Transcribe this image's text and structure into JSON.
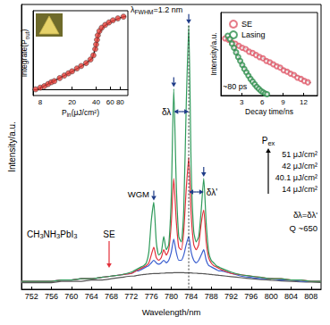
{
  "chart_data": [
    {
      "type": "line",
      "x_label": "Wavelength/nm",
      "y_label": "Intensity/a.u.",
      "xlim": [
        750,
        810
      ],
      "xticks": [
        752,
        756,
        760,
        764,
        768,
        772,
        776,
        780,
        784,
        788,
        792,
        796,
        800,
        804,
        808
      ],
      "ylim": [
        0,
        1.08
      ],
      "tick_labels": "x",
      "x": [
        750,
        752,
        754,
        756,
        758,
        760,
        762,
        764,
        766,
        768,
        770,
        772,
        772.5,
        773,
        773.5,
        774,
        774.5,
        775,
        775.5,
        776,
        776.5,
        777,
        777.5,
        778,
        778.5,
        779,
        779.5,
        780,
        780.5,
        781,
        781.5,
        782,
        782.5,
        783,
        783.5,
        784,
        784.5,
        785,
        785.5,
        786,
        786.5,
        787,
        787.5,
        788,
        788.5,
        789,
        789.5,
        790,
        792,
        794,
        796,
        798,
        800,
        802,
        804,
        806,
        808,
        810
      ],
      "series": [
        {
          "name": "51 μJ/cm²",
          "color": "#2e9a5a",
          "values": [
            0.03,
            0.03,
            0.03,
            0.03,
            0.035,
            0.035,
            0.04,
            0.04,
            0.045,
            0.05,
            0.055,
            0.065,
            0.07,
            0.075,
            0.08,
            0.085,
            0.09,
            0.1,
            0.14,
            0.26,
            0.33,
            0.18,
            0.13,
            0.14,
            0.2,
            0.15,
            0.17,
            0.35,
            0.76,
            0.4,
            0.2,
            0.18,
            0.3,
            0.7,
            1.0,
            0.45,
            0.22,
            0.18,
            0.2,
            0.3,
            0.42,
            0.25,
            0.14,
            0.11,
            0.1,
            0.09,
            0.085,
            0.08,
            0.065,
            0.055,
            0.05,
            0.045,
            0.04,
            0.04,
            0.035,
            0.035,
            0.03,
            0.03
          ]
        },
        {
          "name": "42 μJ/cm²",
          "color": "#e3303a",
          "values": [
            0.03,
            0.03,
            0.03,
            0.03,
            0.035,
            0.035,
            0.04,
            0.04,
            0.045,
            0.05,
            0.055,
            0.06,
            0.065,
            0.07,
            0.075,
            0.08,
            0.085,
            0.09,
            0.1,
            0.13,
            0.16,
            0.12,
            0.11,
            0.12,
            0.15,
            0.13,
            0.15,
            0.25,
            0.42,
            0.26,
            0.16,
            0.15,
            0.22,
            0.38,
            0.5,
            0.28,
            0.17,
            0.15,
            0.17,
            0.25,
            0.3,
            0.18,
            0.12,
            0.1,
            0.09,
            0.085,
            0.08,
            0.075,
            0.06,
            0.055,
            0.05,
            0.045,
            0.04,
            0.04,
            0.035,
            0.035,
            0.03,
            0.03
          ]
        },
        {
          "name": "40.1 μJ/cm²",
          "color": "#3b5fcf",
          "values": [
            0.03,
            0.03,
            0.03,
            0.03,
            0.035,
            0.035,
            0.04,
            0.04,
            0.045,
            0.05,
            0.055,
            0.06,
            0.065,
            0.07,
            0.07,
            0.075,
            0.08,
            0.085,
            0.09,
            0.1,
            0.11,
            0.1,
            0.095,
            0.1,
            0.11,
            0.1,
            0.11,
            0.14,
            0.19,
            0.14,
            0.11,
            0.11,
            0.13,
            0.17,
            0.2,
            0.14,
            0.11,
            0.1,
            0.11,
            0.13,
            0.15,
            0.11,
            0.09,
            0.085,
            0.08,
            0.075,
            0.07,
            0.07,
            0.06,
            0.05,
            0.045,
            0.04,
            0.04,
            0.035,
            0.035,
            0.03,
            0.03,
            0.03
          ]
        },
        {
          "name": "14 μJ/cm²",
          "color": "#555555",
          "values": [
            0.025,
            0.025,
            0.025,
            0.025,
            0.03,
            0.03,
            0.03,
            0.035,
            0.035,
            0.04,
            0.045,
            0.05,
            0.05,
            0.052,
            0.054,
            0.055,
            0.056,
            0.057,
            0.058,
            0.059,
            0.06,
            0.06,
            0.06,
            0.061,
            0.061,
            0.062,
            0.062,
            0.062,
            0.063,
            0.063,
            0.063,
            0.063,
            0.063,
            0.062,
            0.062,
            0.062,
            0.061,
            0.061,
            0.06,
            0.06,
            0.059,
            0.058,
            0.057,
            0.056,
            0.055,
            0.054,
            0.053,
            0.052,
            0.048,
            0.044,
            0.04,
            0.037,
            0.034,
            0.032,
            0.03,
            0.028,
            0.027,
            0.026
          ]
        }
      ],
      "annotations": [
        "SE",
        "WGM",
        [
          {
            "t": "CH"
          },
          {
            "t": "3",
            "sub": true
          },
          {
            "t": "NH"
          },
          {
            "t": "3",
            "sub": true
          },
          {
            "t": "PbI"
          },
          {
            "t": "3",
            "sub": true
          }
        ],
        "δλ",
        "δλ'",
        [
          {
            "t": "λ"
          },
          {
            "t": "FWHM",
            "sub": true
          },
          {
            "t": "=1.2 nm"
          }
        ],
        [
          {
            "t": "P"
          },
          {
            "t": "ex",
            "sub": true
          }
        ],
        "δλ=δλ'",
        "Q ~650"
      ]
    },
    {
      "type": "scatter",
      "log": true,
      "x_label": [
        {
          "t": "P"
        },
        {
          "t": "in",
          "sub": true
        },
        {
          "t": "(μJ/cm²)"
        }
      ],
      "y_label": [
        {
          "t": "Integrate(P"
        },
        {
          "t": "out",
          "sub": true
        },
        {
          "t": ")"
        }
      ],
      "xlim": [
        6.5,
        100
      ],
      "xticks": [
        8,
        20,
        40,
        60,
        80
      ],
      "ylim": [
        0.7,
        90
      ],
      "tick_labels": "x",
      "series": [
        {
          "type": "scatter",
          "color": "#e8403a",
          "marker": "circle",
          "x": [
            7,
            8,
            9,
            10,
            11,
            12,
            14,
            16,
            18,
            20,
            23,
            26,
            30,
            34,
            37,
            39,
            40,
            41,
            42,
            44,
            47,
            52,
            58,
            65,
            75,
            88
          ],
          "values": [
            1.0,
            1.1,
            1.2,
            1.35,
            1.5,
            1.6,
            1.9,
            2.2,
            2.5,
            2.8,
            3.3,
            3.8,
            4.5,
            5.5,
            7,
            10,
            13,
            17,
            22,
            28,
            34,
            40,
            46,
            52,
            58,
            64
          ]
        },
        {
          "type": "line",
          "color": "#000000",
          "x": [
            7,
            10,
            15,
            20,
            30,
            36,
            40,
            43,
            50,
            60,
            80,
            95
          ],
          "values": [
            0.95,
            1.35,
            2.05,
            2.75,
            4.4,
            6,
            12,
            24,
            37,
            47,
            60,
            66
          ]
        }
      ]
    },
    {
      "type": "scatter",
      "x_label": "Decay time/ns",
      "y_label": "Intensity/a.u.",
      "xlim": [
        0,
        14
      ],
      "xticks": [
        3,
        6,
        9,
        12
      ],
      "ylim": [
        0,
        1.25
      ],
      "tick_labels": "x",
      "legend": "upper left",
      "series": [
        {
          "name": "SE",
          "type": "scatter",
          "color": "#e05a6a",
          "marker": "circle-open",
          "x": [
            0.6,
            1.1,
            1.6,
            2.1,
            2.6,
            3.1,
            3.6,
            4.1,
            4.6,
            5.1,
            5.6,
            6.1,
            6.6,
            7.1,
            7.6,
            8.1,
            8.6,
            9.1,
            9.6,
            10.1,
            10.6,
            11.1,
            11.6,
            12.1,
            12.6
          ],
          "values": [
            0.86,
            0.84,
            0.8,
            0.78,
            0.75,
            0.72,
            0.7,
            0.66,
            0.64,
            0.61,
            0.58,
            0.56,
            0.52,
            0.5,
            0.47,
            0.44,
            0.42,
            0.38,
            0.36,
            0.33,
            0.31,
            0.27,
            0.25,
            0.22,
            0.2
          ]
        },
        {
          "name": "Lasing",
          "type": "scatter",
          "color": "#2f8f4e",
          "marker": "circle-open",
          "x": [
            1.0,
            1.3,
            1.6,
            1.9,
            2.2,
            2.5,
            2.8,
            3.1,
            3.4,
            3.7,
            4.0,
            4.3,
            4.6,
            4.9,
            5.2,
            5.5,
            5.8,
            6.1,
            6.4,
            6.7
          ],
          "values": [
            0.9,
            0.85,
            0.78,
            0.72,
            0.65,
            0.58,
            0.52,
            0.46,
            0.4,
            0.35,
            0.3,
            0.25,
            0.21,
            0.17,
            0.13,
            0.1,
            0.07,
            0.05,
            0.03,
            0.02
          ]
        },
        {
          "type": "line",
          "color": "#000000",
          "x": [
            0.5,
            13
          ],
          "values": [
            0.87,
            0.19
          ]
        },
        {
          "type": "line",
          "color": "#000000",
          "x": [
            1.0,
            3.0,
            5.0,
            6.6
          ],
          "values": [
            0.9,
            0.48,
            0.16,
            0.02
          ]
        }
      ],
      "annotations": [
        "~80 ps"
      ]
    }
  ]
}
